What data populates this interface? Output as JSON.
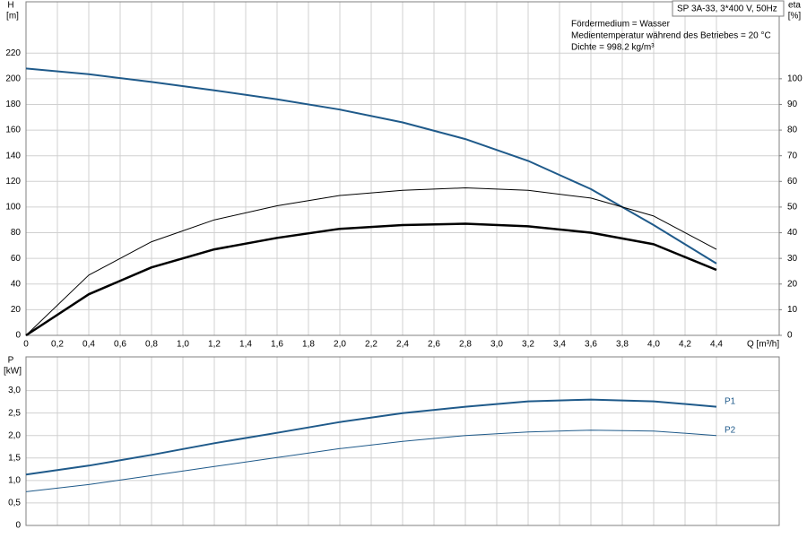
{
  "chart_data": [
    {
      "type": "line",
      "title": "SP 3A-33, 3*400 V, 50Hz",
      "annotations": [
        "Fördermedium = Wasser",
        "Medientemperatur während des Betriebes = 20 °C",
        "Dichte = 998.2 kg/m³"
      ],
      "ylabel": "H",
      "yunit": "[m]",
      "y2label": "eta",
      "y2unit": "[%]",
      "xlabel": "Q [m³/h]",
      "x": [
        0,
        0.4,
        0.8,
        1.2,
        1.6,
        2.0,
        2.4,
        2.8,
        3.2,
        3.6,
        4.0,
        4.4
      ],
      "xlim": [
        0,
        4.8
      ],
      "xticks": [
        0,
        {
          "value": 0.2,
          "label": "0,2"
        },
        {
          "value": 0.4,
          "label": "0,4"
        },
        {
          "value": 0.6,
          "label": "0,6"
        },
        {
          "value": 0.8,
          "label": "0,8"
        },
        {
          "value": 1.0,
          "label": "1,0"
        },
        {
          "value": 1.2,
          "label": "1,2"
        },
        {
          "value": 1.4,
          "label": "1,4"
        },
        {
          "value": 1.6,
          "label": "1,6"
        },
        {
          "value": 1.8,
          "label": "1,8"
        },
        {
          "value": 2.0,
          "label": "2,0"
        },
        {
          "value": 2.2,
          "label": "2,2"
        },
        {
          "value": 2.4,
          "label": "2,4"
        },
        {
          "value": 2.6,
          "label": "2,6"
        },
        {
          "value": 2.8,
          "label": "2,8"
        },
        {
          "value": 3.0,
          "label": "3,0"
        },
        {
          "value": 3.2,
          "label": "3,2"
        },
        {
          "value": 3.4,
          "label": "3,4"
        },
        {
          "value": 3.6,
          "label": "3,6"
        },
        {
          "value": 3.8,
          "label": "3,8"
        },
        {
          "value": 4.0,
          "label": "4,0"
        },
        {
          "value": 4.2,
          "label": "4,2"
        },
        {
          "value": 4.4,
          "label": "4,4"
        }
      ],
      "xtick_labels": true,
      "ylim": [
        0,
        260
      ],
      "yticks": [
        0,
        20,
        40,
        60,
        80,
        100,
        120,
        140,
        160,
        180,
        200,
        220
      ],
      "y2lim": [
        0,
        130
      ],
      "y2ticks": [
        0,
        10,
        20,
        30,
        40,
        50,
        60,
        70,
        80,
        90,
        100
      ],
      "grid": true,
      "series": [
        {
          "color": "#1f5a8a",
          "line_width": 2,
          "values": [
            208,
            203.5,
            197.5,
            191,
            184,
            176,
            166,
            153,
            136,
            114,
            86,
            56
          ]
        },
        {
          "color": "#000000",
          "line_width": 1,
          "axis": "y2",
          "values": [
            0,
            23.5,
            36.5,
            45,
            50.5,
            54.5,
            56.5,
            57.5,
            56.5,
            53.5,
            46.5,
            33.5
          ]
        },
        {
          "color": "#000000",
          "line_width": 2.5,
          "axis": "y2",
          "values": [
            0,
            16,
            26.5,
            33.5,
            38,
            41.5,
            43,
            43.5,
            42.5,
            40,
            35.5,
            25.5
          ]
        }
      ]
    },
    {
      "type": "line",
      "ylabel": "P",
      "yunit": "[kW]",
      "x": [
        0,
        0.4,
        0.8,
        1.2,
        1.6,
        2.0,
        2.4,
        2.8,
        3.2,
        3.6,
        4.0,
        4.4
      ],
      "xlim": [
        0,
        4.8
      ],
      "xticks": [
        0,
        0.2,
        0.4,
        0.6,
        0.8,
        1.0,
        1.2,
        1.4,
        1.6,
        1.8,
        2.0,
        2.2,
        2.4,
        2.6,
        2.8,
        3.0,
        3.2,
        3.4,
        3.6,
        3.8,
        4.0,
        4.2,
        4.4
      ],
      "xtick_labels": false,
      "ylim": [
        0,
        3.75
      ],
      "yticks": [
        0,
        {
          "value": 0.5,
          "label": "0,5"
        },
        {
          "value": 1.0,
          "label": "1,0"
        },
        {
          "value": 1.5,
          "label": "1,5"
        },
        {
          "value": 2.0,
          "label": "2,0"
        },
        {
          "value": 2.5,
          "label": "2,5"
        },
        {
          "value": 3.0,
          "label": "3,0"
        }
      ],
      "grid": true,
      "series": [
        {
          "name": "P1",
          "color": "#1f5a8a",
          "line_width": 2,
          "values": [
            1.13,
            1.33,
            1.57,
            1.83,
            2.06,
            2.3,
            2.5,
            2.64,
            2.76,
            2.8,
            2.76,
            2.64
          ]
        },
        {
          "name": "P2",
          "color": "#1f5a8a",
          "line_width": 1,
          "values": [
            0.75,
            0.91,
            1.11,
            1.31,
            1.51,
            1.71,
            1.87,
            2.0,
            2.08,
            2.12,
            2.1,
            2.0
          ]
        }
      ]
    }
  ]
}
